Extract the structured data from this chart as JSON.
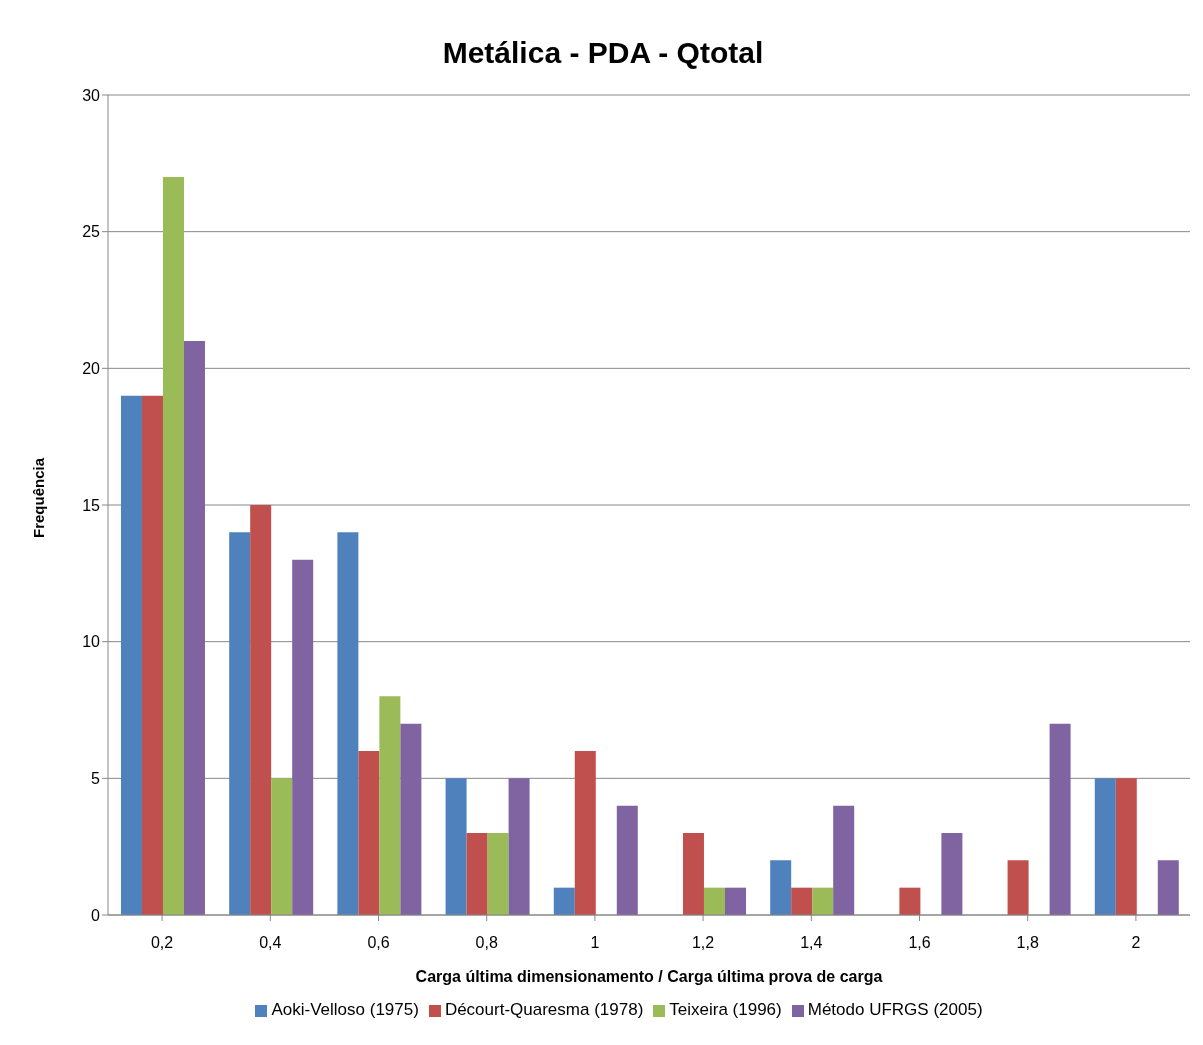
{
  "chart_data": {
    "type": "bar",
    "title": "Metálica - PDA - Qtotal",
    "xlabel": "Carga última dimensionamento / Carga última prova de carga",
    "ylabel": "Frequência",
    "categories": [
      "0,2",
      "0,4",
      "0,6",
      "0,8",
      "1",
      "1,2",
      "1,4",
      "1,6",
      "1,8",
      "2"
    ],
    "series": [
      {
        "name": "Aoki-Velloso (1975)",
        "color": "#4f81bd",
        "values": [
          19,
          14,
          14,
          5,
          1,
          0,
          2,
          0,
          0,
          5
        ]
      },
      {
        "name": "Décourt-Quaresma (1978)",
        "color": "#c0504d",
        "values": [
          19,
          15,
          6,
          3,
          6,
          3,
          1,
          1,
          2,
          5
        ]
      },
      {
        "name": "Teixeira (1996)",
        "color": "#9bbb59",
        "values": [
          27,
          5,
          8,
          3,
          0,
          1,
          1,
          0,
          0,
          0
        ]
      },
      {
        "name": "Método UFRGS (2005)",
        "color": "#8064a2",
        "values": [
          21,
          13,
          7,
          5,
          4,
          1,
          4,
          3,
          7,
          2
        ]
      }
    ],
    "ylim": [
      0,
      30
    ],
    "yticks": [
      0,
      5,
      10,
      15,
      20,
      25,
      30
    ],
    "grid": "y",
    "legend": "bottom"
  }
}
